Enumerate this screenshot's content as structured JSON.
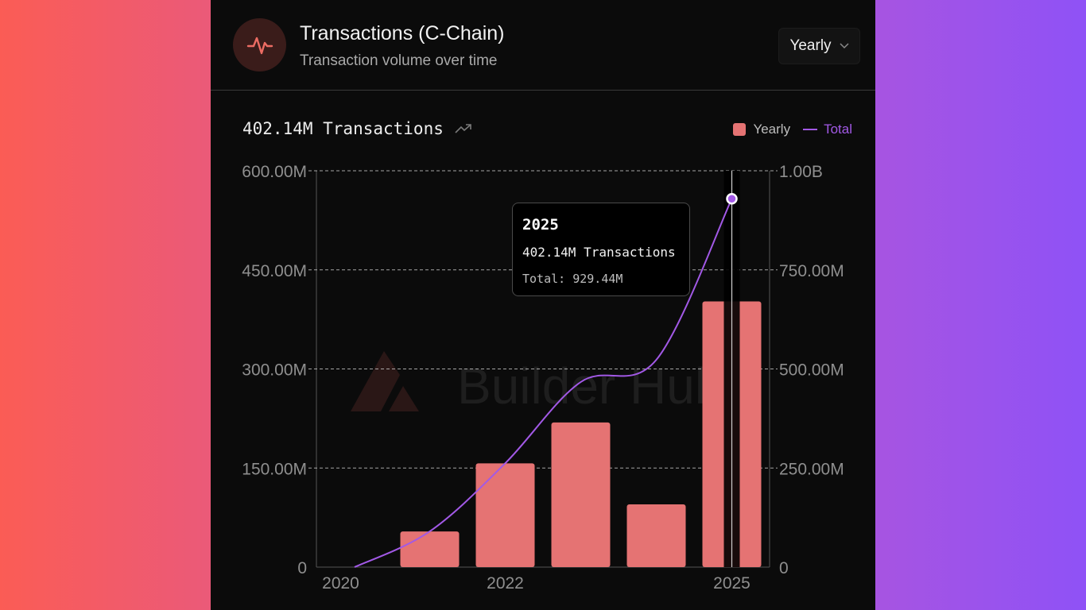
{
  "header": {
    "title": "Transactions (C-Chain)",
    "subtitle": "Transaction volume over time",
    "period_selected": "Yearly",
    "icon": "activity-pulse-icon"
  },
  "summary": {
    "value_label": "402.14M Transactions"
  },
  "legend": {
    "bar_label": "Yearly",
    "line_label": "Total"
  },
  "watermark": "Builder Hub",
  "tooltip": {
    "year": "2025",
    "value_line": "402.14M Transactions",
    "total_line": "Total: 929.44M"
  },
  "colors": {
    "bar": "#e57373",
    "line": "#a259e6",
    "accent_icon": "#ec6c63"
  },
  "chart_data": {
    "type": "bar",
    "title": "Transactions (C-Chain)",
    "categories": [
      "2020",
      "2021",
      "2022",
      "2023",
      "2024",
      "2025"
    ],
    "x_tick_labels": [
      {
        "category": "2020",
        "label": "2020"
      },
      {
        "category": "2022",
        "label": "2022"
      },
      {
        "category": "2025",
        "label": "2025"
      }
    ],
    "series": [
      {
        "name": "Yearly",
        "kind": "bar",
        "axis": "left",
        "values": [
          0,
          54,
          157,
          219,
          95,
          402.14
        ]
      },
      {
        "name": "Total",
        "kind": "line",
        "axis": "right",
        "values": [
          0,
          90,
          262,
          467,
          523,
          929.44
        ]
      }
    ],
    "y_left": {
      "min": 0,
      "max": 600,
      "unit": "M",
      "ticks": [
        0,
        150,
        300,
        450,
        600
      ],
      "tick_labels": [
        "0",
        "150.00M",
        "300.00M",
        "450.00M",
        "600.00M"
      ]
    },
    "y_right": {
      "min": 0,
      "max": 1000,
      "unit": "M",
      "ticks": [
        0,
        250,
        500,
        750,
        1000
      ],
      "tick_labels": [
        "0",
        "250.00M",
        "500.00M",
        "750.00M",
        "1.00B"
      ]
    },
    "highlighted_category": "2025",
    "grid": true
  }
}
